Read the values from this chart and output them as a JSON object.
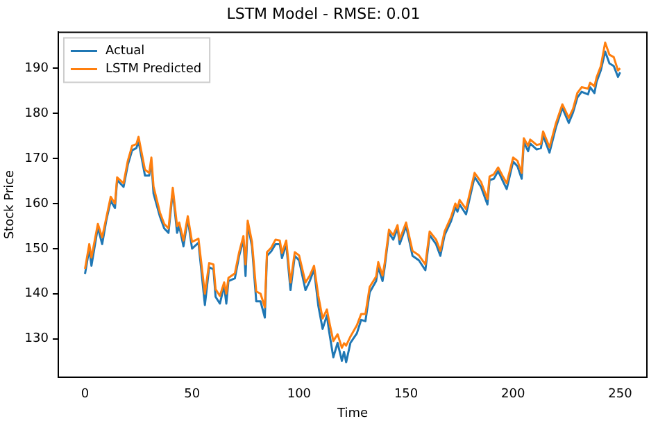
{
  "chart_data": {
    "type": "line",
    "title": "LSTM Model - RMSE: 0.01",
    "xlabel": "Time",
    "ylabel": "Stock Price",
    "xlim": [
      -12.5,
      262.5
    ],
    "ylim": [
      121.5,
      198
    ],
    "xticks": [
      0,
      50,
      100,
      150,
      200,
      250
    ],
    "yticks": [
      130,
      140,
      150,
      160,
      170,
      180,
      190
    ],
    "legend": "top left",
    "grid": false,
    "marker": "none",
    "line_style": "solid",
    "series": [
      {
        "name": "Actual",
        "color": "#1f77b4",
        "x": [
          0,
          2,
          3,
          6,
          8,
          10,
          12,
          14,
          15,
          18,
          20,
          22,
          24,
          25,
          28,
          30,
          31,
          32,
          35,
          37,
          39,
          41,
          43,
          44,
          46,
          48,
          50,
          53,
          56,
          58,
          60,
          61,
          63,
          65,
          66,
          67,
          70,
          72,
          74,
          75,
          76,
          78,
          80,
          82,
          84,
          85,
          87,
          89,
          91,
          92,
          94,
          96,
          98,
          100,
          103,
          105,
          107,
          109,
          111,
          113,
          114,
          116,
          118,
          120,
          121,
          122,
          124,
          127,
          129,
          131,
          133,
          136,
          137,
          139,
          140,
          142,
          144,
          146,
          147,
          150,
          153,
          156,
          159,
          161,
          164,
          166,
          168,
          171,
          173,
          174,
          175,
          178,
          182,
          185,
          188,
          189,
          191,
          193,
          195,
          197,
          200,
          202,
          204,
          205,
          207,
          208,
          211,
          213,
          214,
          217,
          220,
          223,
          226,
          228,
          230,
          232,
          235,
          236,
          238,
          239,
          241,
          243,
          245,
          247,
          249,
          250
        ],
        "values": [
          144.4,
          150,
          146.2,
          154.7,
          151,
          156.4,
          160.6,
          159,
          165.2,
          163.7,
          168.6,
          171.8,
          172.3,
          173.8,
          166.2,
          166.2,
          169.3,
          162.2,
          157.1,
          154.5,
          153.5,
          162.7,
          153.5,
          155,
          150.5,
          156.6,
          150,
          151.3,
          137.5,
          145.9,
          145.4,
          139.3,
          137.8,
          141.8,
          137.8,
          142.8,
          143.4,
          148.4,
          152,
          143.9,
          155.5,
          150.5,
          138.3,
          138.3,
          134.7,
          148.4,
          149.4,
          151,
          151,
          147.9,
          151,
          140.8,
          148.4,
          147.4,
          140.8,
          142.8,
          145.4,
          137.3,
          132.2,
          135.2,
          131.7,
          125.9,
          129.1,
          125.1,
          127.1,
          124.8,
          129.1,
          131.2,
          134.2,
          133.9,
          140.3,
          142.8,
          145.9,
          142.8,
          145.9,
          153.5,
          152,
          154.5,
          151,
          155,
          148.4,
          147.4,
          145.2,
          153,
          151,
          148.4,
          153,
          156.1,
          159.1,
          158.2,
          159.8,
          157.6,
          165.9,
          163.7,
          159.8,
          165.2,
          165.5,
          167.2,
          165.2,
          163.2,
          169.3,
          168.3,
          165.5,
          173.6,
          171.6,
          173.3,
          172,
          172.3,
          175.1,
          171.3,
          176.9,
          181.2,
          177.9,
          180.2,
          183.5,
          184.8,
          184.2,
          185.8,
          184.5,
          187,
          189.6,
          193.7,
          191.1,
          190.5,
          188.1,
          189.1
        ]
      },
      {
        "name": "LSTM Predicted",
        "color": "#ff7f0e",
        "x": [
          0,
          2,
          3,
          6,
          8,
          10,
          12,
          14,
          15,
          18,
          20,
          22,
          24,
          25,
          28,
          30,
          31,
          32,
          35,
          37,
          39,
          41,
          43,
          44,
          46,
          48,
          50,
          53,
          56,
          58,
          60,
          61,
          63,
          65,
          66,
          67,
          70,
          72,
          74,
          75,
          76,
          78,
          80,
          82,
          84,
          85,
          87,
          89,
          91,
          92,
          94,
          96,
          98,
          100,
          103,
          105,
          107,
          109,
          111,
          113,
          114,
          116,
          118,
          120,
          121,
          122,
          124,
          127,
          129,
          131,
          133,
          136,
          137,
          139,
          140,
          142,
          144,
          146,
          147,
          150,
          153,
          156,
          159,
          161,
          164,
          166,
          168,
          171,
          173,
          174,
          175,
          178,
          182,
          185,
          188,
          189,
          191,
          193,
          195,
          197,
          200,
          202,
          204,
          205,
          207,
          208,
          211,
          213,
          214,
          217,
          220,
          223,
          226,
          228,
          230,
          232,
          235,
          236,
          238,
          239,
          241,
          243,
          245,
          247,
          249,
          250
        ],
        "values": [
          145.5,
          151,
          148,
          155.5,
          152.5,
          157,
          161.5,
          160,
          165.8,
          164.5,
          169.5,
          172.8,
          173.2,
          174.8,
          167.5,
          166.8,
          170.2,
          163.8,
          158,
          155.5,
          154.5,
          163.5,
          155,
          155.8,
          151.8,
          157.2,
          151.5,
          152.2,
          140,
          146.8,
          146.5,
          141,
          139.5,
          142.5,
          140,
          143.5,
          144.5,
          149.2,
          152.8,
          146.5,
          156.2,
          151.5,
          140.5,
          140,
          137,
          149.2,
          150.2,
          152,
          151.8,
          149,
          151.8,
          142.5,
          149.2,
          148.5,
          142.5,
          144,
          146.2,
          139.5,
          134.5,
          136.5,
          134,
          129.5,
          131,
          128,
          129,
          128.5,
          130.5,
          133,
          135.5,
          135.5,
          141.5,
          143.8,
          147,
          144,
          146.8,
          154.2,
          153,
          155.2,
          152,
          155.8,
          149.5,
          148.5,
          146.5,
          153.8,
          152,
          149.5,
          153.8,
          157,
          160,
          159,
          160.8,
          158.8,
          166.8,
          164.8,
          161,
          166,
          166.5,
          168,
          166.2,
          164.5,
          170.2,
          169.5,
          166.8,
          174.5,
          172.8,
          174.2,
          173,
          173.2,
          176,
          172.5,
          177.8,
          182,
          179,
          181,
          184.5,
          185.8,
          185.5,
          186.8,
          186,
          188,
          190.5,
          195.7,
          193,
          192.5,
          189.5,
          190
        ]
      }
    ]
  }
}
